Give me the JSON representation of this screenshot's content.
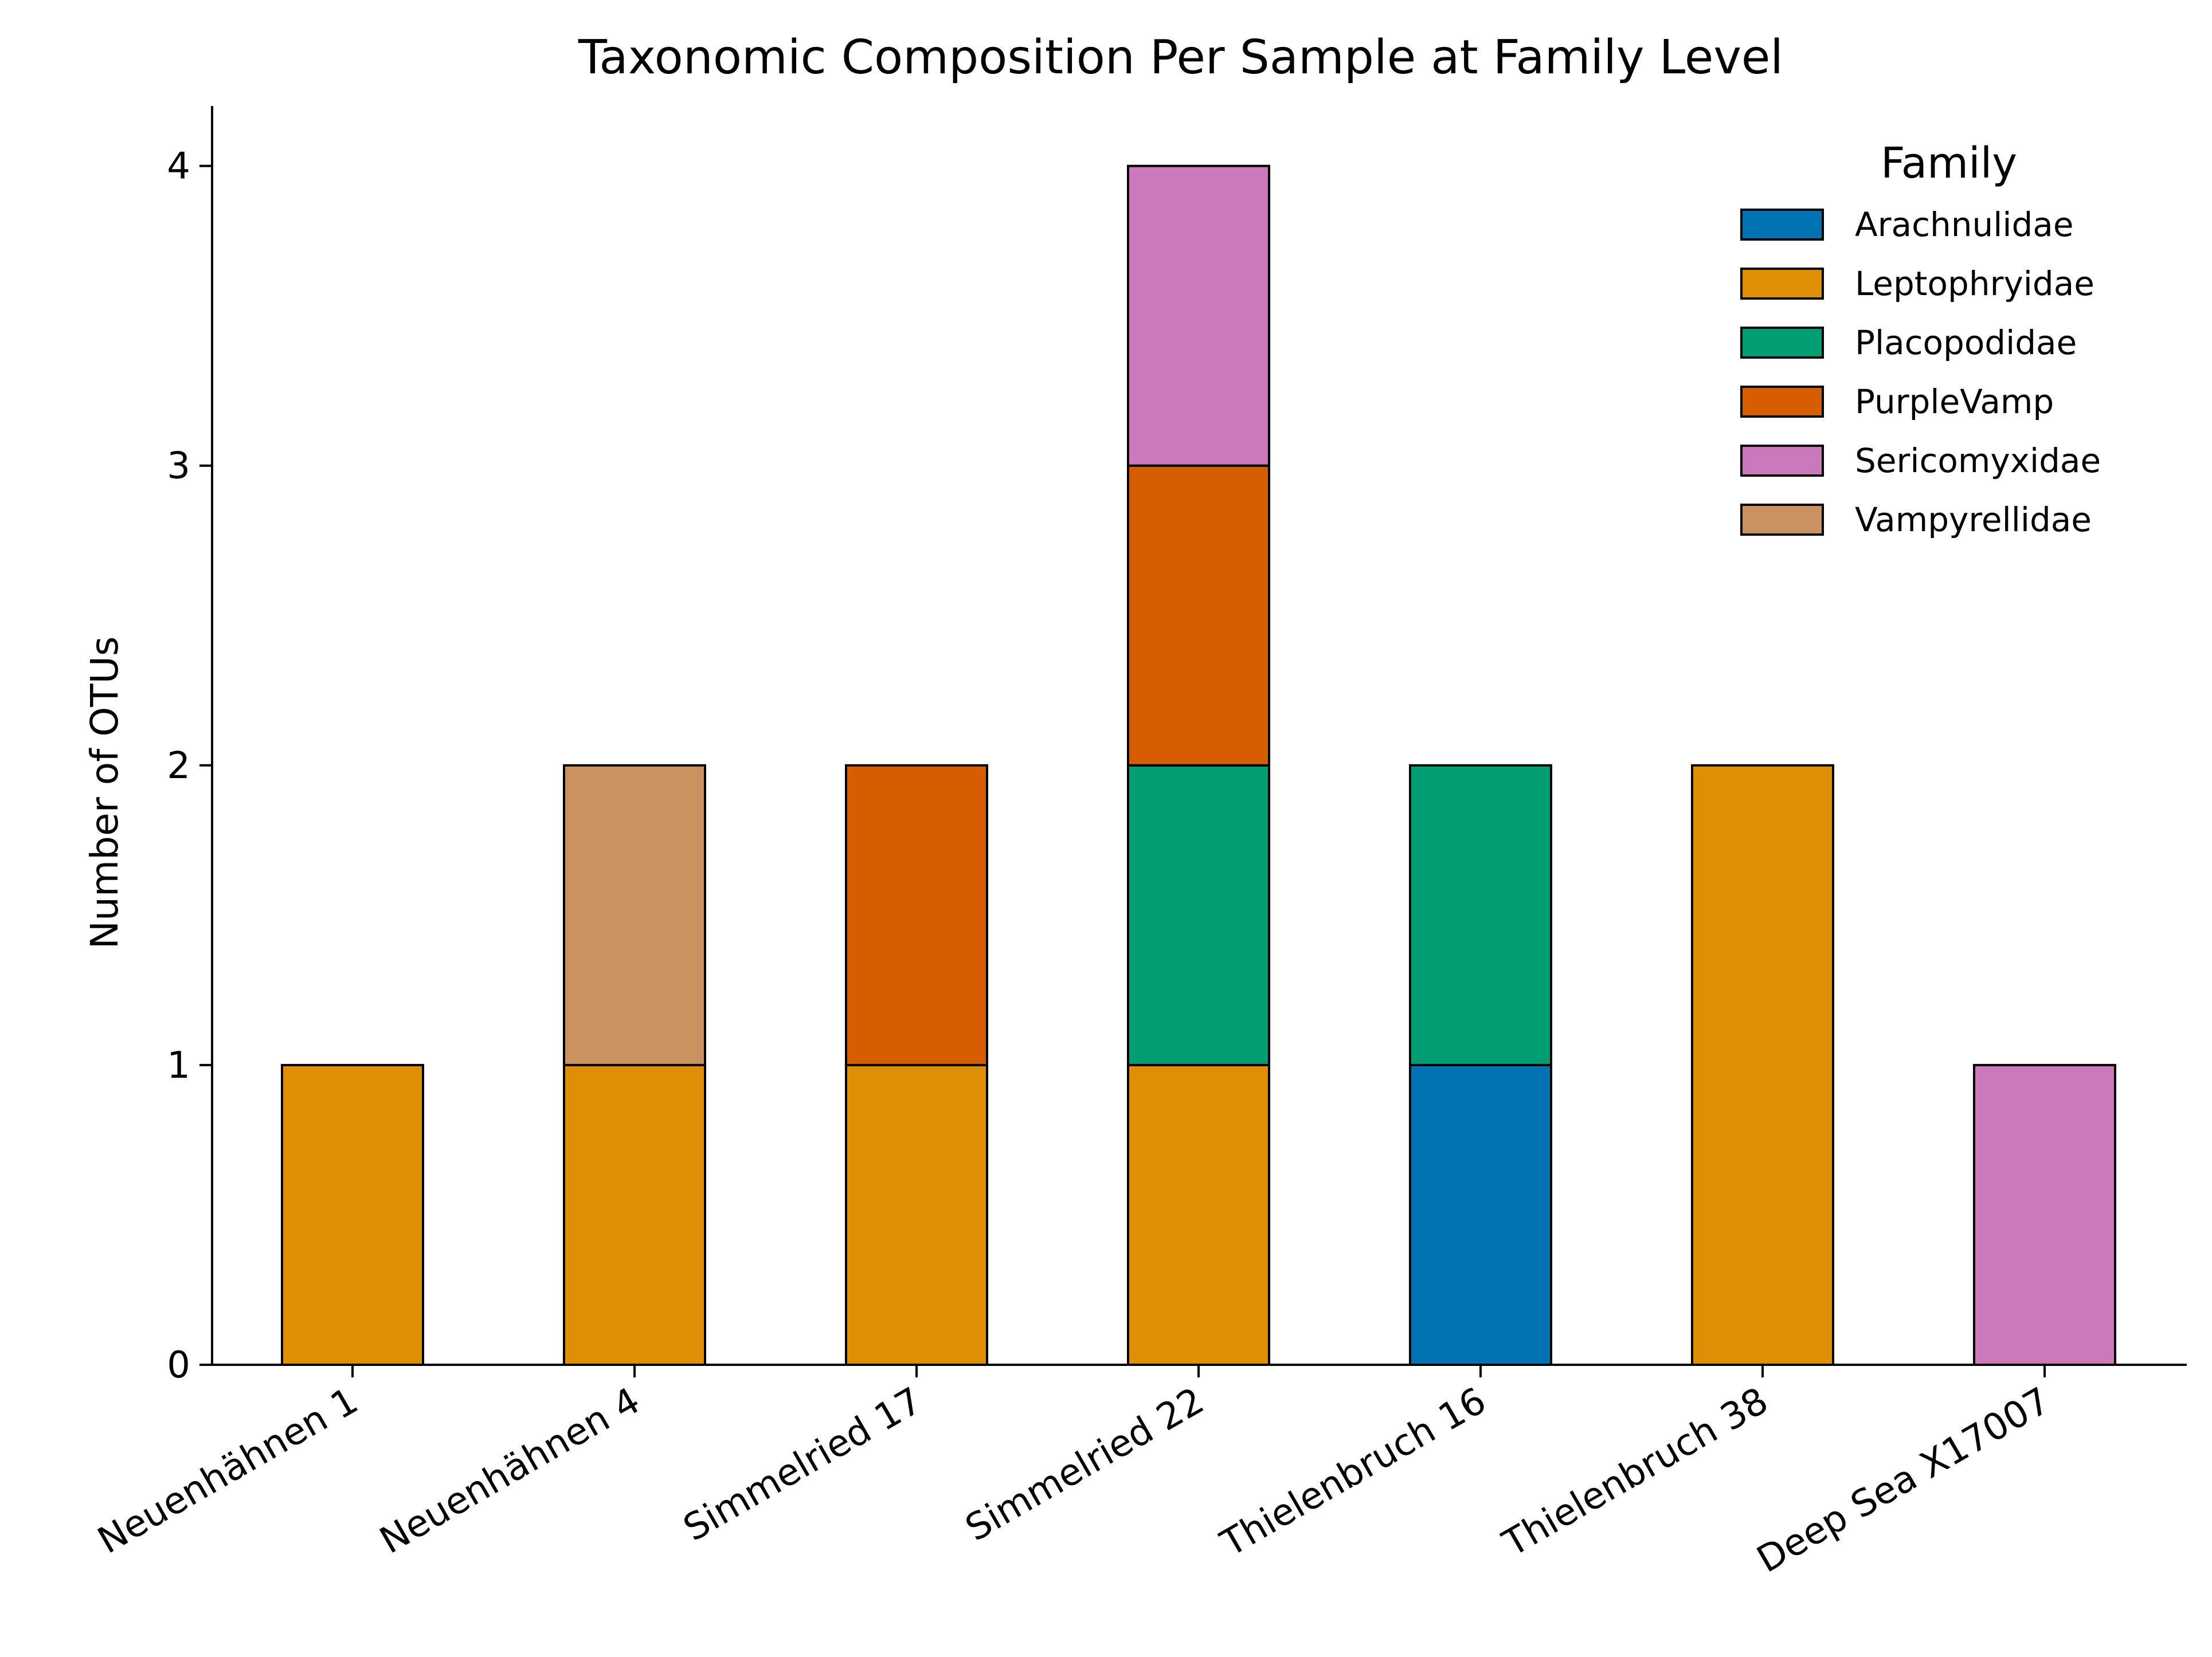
{
  "chart_data": {
    "type": "bar",
    "stacked": true,
    "title": "Taxonomic Composition Per Sample at Family Level",
    "xlabel": "",
    "ylabel": "Number of OTUs",
    "ylim": [
      0,
      4.2
    ],
    "yticks": [
      0,
      1,
      2,
      3,
      4
    ],
    "grid": false,
    "legend": {
      "title": "Family",
      "placement": "top-right"
    },
    "categories": [
      "Neuenhähnen 1",
      "Neuenhähnen 4",
      "Simmelried 17",
      "Simmelried 22",
      "Thielenbruch 16",
      "Thielenbruch 38",
      "Deep Sea X17007"
    ],
    "series": [
      {
        "name": "Arachnulidae",
        "color": "#0173b2",
        "values": [
          0,
          0,
          0,
          0,
          1,
          0,
          0
        ]
      },
      {
        "name": "Leptophryidae",
        "color": "#de8f05",
        "values": [
          1,
          1,
          1,
          1,
          0,
          2,
          0
        ]
      },
      {
        "name": "Placopodidae",
        "color": "#029e73",
        "values": [
          0,
          0,
          0,
          1,
          1,
          0,
          0
        ]
      },
      {
        "name": "PurpleVamp",
        "color": "#d55e00",
        "values": [
          0,
          0,
          1,
          1,
          0,
          0,
          0
        ]
      },
      {
        "name": "Sericomyxidae",
        "color": "#cc78bc",
        "values": [
          0,
          0,
          0,
          1,
          0,
          0,
          1
        ]
      },
      {
        "name": "Vampyrellidae",
        "color": "#ca9161",
        "values": [
          0,
          1,
          0,
          0,
          0,
          0,
          0
        ]
      }
    ]
  }
}
